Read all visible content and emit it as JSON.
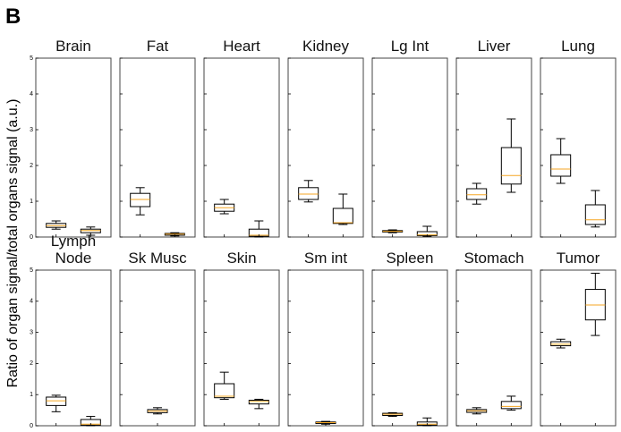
{
  "panel_label": "B",
  "ylabel": "Ratio of organ signal/total organs signal (a.u.)",
  "chart_data": [
    {
      "type": "box",
      "title": "Brain",
      "ylim": [
        0,
        5
      ],
      "yticks": [
        0,
        1,
        2,
        3,
        4,
        5
      ],
      "box_color": "#000000",
      "median_color": "#f5a623",
      "boxes": [
        {
          "whislo": 0.22,
          "q1": 0.27,
          "med": 0.32,
          "q3": 0.38,
          "whishi": 0.45
        },
        {
          "whislo": 0.05,
          "q1": 0.12,
          "med": 0.18,
          "q3": 0.22,
          "whishi": 0.28
        }
      ]
    },
    {
      "type": "box",
      "title": "Fat",
      "ylim": [
        0,
        5
      ],
      "yticks": [
        0,
        1,
        2,
        3,
        4,
        5
      ],
      "box_color": "#000000",
      "median_color": "#f5a623",
      "boxes": [
        {
          "whislo": 0.62,
          "q1": 0.85,
          "med": 1.05,
          "q3": 1.22,
          "whishi": 1.38
        },
        {
          "whislo": 0.03,
          "q1": 0.05,
          "med": 0.08,
          "q3": 0.1,
          "whishi": 0.12
        }
      ]
    },
    {
      "type": "box",
      "title": "Heart",
      "ylim": [
        0,
        5
      ],
      "yticks": [
        0,
        1,
        2,
        3,
        4,
        5
      ],
      "box_color": "#000000",
      "median_color": "#f5a623",
      "boxes": [
        {
          "whislo": 0.65,
          "q1": 0.72,
          "med": 0.82,
          "q3": 0.92,
          "whishi": 1.05
        },
        {
          "whislo": 0,
          "q1": 0.02,
          "med": 0.05,
          "q3": 0.22,
          "whishi": 0.45
        }
      ]
    },
    {
      "type": "box",
      "title": "Kidney",
      "ylim": [
        0,
        5
      ],
      "yticks": [
        0,
        1,
        2,
        3,
        4,
        5
      ],
      "box_color": "#000000",
      "median_color": "#f5a623",
      "boxes": [
        {
          "whislo": 0.98,
          "q1": 1.05,
          "med": 1.2,
          "q3": 1.38,
          "whishi": 1.58
        },
        {
          "whislo": 0.35,
          "q1": 0.38,
          "med": 0.4,
          "q3": 0.8,
          "whishi": 1.2
        }
      ]
    },
    {
      "type": "box",
      "title": "Lg Int",
      "ylim": [
        0,
        5
      ],
      "yticks": [
        0,
        1,
        2,
        3,
        4,
        5
      ],
      "box_color": "#000000",
      "median_color": "#f5a623",
      "boxes": [
        {
          "whislo": 0.12,
          "q1": 0.14,
          "med": 0.16,
          "q3": 0.18,
          "whishi": 0.2
        },
        {
          "whislo": 0.02,
          "q1": 0.04,
          "med": 0.06,
          "q3": 0.15,
          "whishi": 0.3
        }
      ]
    },
    {
      "type": "box",
      "title": "Liver",
      "ylim": [
        0,
        5
      ],
      "yticks": [
        0,
        1,
        2,
        3,
        4,
        5
      ],
      "box_color": "#000000",
      "median_color": "#f5a623",
      "boxes": [
        {
          "whislo": 0.92,
          "q1": 1.05,
          "med": 1.18,
          "q3": 1.35,
          "whishi": 1.5
        },
        {
          "whislo": 1.25,
          "q1": 1.48,
          "med": 1.72,
          "q3": 2.5,
          "whishi": 3.3
        }
      ]
    },
    {
      "type": "box",
      "title": "Lung",
      "ylim": [
        0,
        5
      ],
      "yticks": [
        0,
        1,
        2,
        3,
        4,
        5
      ],
      "box_color": "#000000",
      "median_color": "#f5a623",
      "boxes": [
        {
          "whislo": 1.5,
          "q1": 1.7,
          "med": 1.9,
          "q3": 2.3,
          "whishi": 2.75
        },
        {
          "whislo": 0.28,
          "q1": 0.35,
          "med": 0.48,
          "q3": 0.9,
          "whishi": 1.3
        }
      ]
    },
    {
      "type": "box",
      "title": "Lymph Node",
      "ylim": [
        0,
        5
      ],
      "yticks": [
        0,
        1,
        2,
        3,
        4,
        5
      ],
      "box_color": "#000000",
      "median_color": "#f5a623",
      "boxes": [
        {
          "whislo": 0.45,
          "q1": 0.65,
          "med": 0.8,
          "q3": 0.92,
          "whishi": 0.98
        },
        {
          "whislo": 0,
          "q1": 0.02,
          "med": 0.05,
          "q3": 0.2,
          "whishi": 0.3
        }
      ]
    },
    {
      "type": "box",
      "title": "Sk Musc",
      "ylim": [
        0,
        5
      ],
      "yticks": [
        0,
        1,
        2,
        3,
        4,
        5
      ],
      "box_color": "#000000",
      "median_color": "#f5a623",
      "boxes": [
        {
          "whislo": 0.38,
          "q1": 0.42,
          "med": 0.47,
          "q3": 0.52,
          "whishi": 0.58
        }
      ]
    },
    {
      "type": "box",
      "title": "Skin",
      "ylim": [
        0,
        5
      ],
      "yticks": [
        0,
        1,
        2,
        3,
        4,
        5
      ],
      "box_color": "#000000",
      "median_color": "#f5a623",
      "boxes": [
        {
          "whislo": 0.85,
          "q1": 0.9,
          "med": 0.95,
          "q3": 1.35,
          "whishi": 1.72
        },
        {
          "whislo": 0.55,
          "q1": 0.7,
          "med": 0.78,
          "q3": 0.82,
          "whishi": 0.85
        }
      ]
    },
    {
      "type": "box",
      "title": "Sm int",
      "ylim": [
        0,
        5
      ],
      "yticks": [
        0,
        1,
        2,
        3,
        4,
        5
      ],
      "box_color": "#000000",
      "median_color": "#f5a623",
      "boxes": [
        {
          "whislo": 0.05,
          "q1": 0.07,
          "med": 0.1,
          "q3": 0.12,
          "whishi": 0.14
        }
      ]
    },
    {
      "type": "box",
      "title": "Spleen",
      "ylim": [
        0,
        5
      ],
      "yticks": [
        0,
        1,
        2,
        3,
        4,
        5
      ],
      "box_color": "#000000",
      "median_color": "#f5a623",
      "boxes": [
        {
          "whislo": 0.3,
          "q1": 0.33,
          "med": 0.37,
          "q3": 0.4,
          "whishi": 0.42
        },
        {
          "whislo": 0,
          "q1": 0.02,
          "med": 0.05,
          "q3": 0.12,
          "whishi": 0.25
        }
      ]
    },
    {
      "type": "box",
      "title": "Stomach",
      "ylim": [
        0,
        5
      ],
      "yticks": [
        0,
        1,
        2,
        3,
        4,
        5
      ],
      "box_color": "#000000",
      "median_color": "#f5a623",
      "boxes": [
        {
          "whislo": 0.38,
          "q1": 0.43,
          "med": 0.48,
          "q3": 0.52,
          "whishi": 0.58
        },
        {
          "whislo": 0.5,
          "q1": 0.55,
          "med": 0.62,
          "q3": 0.78,
          "whishi": 0.95
        }
      ]
    },
    {
      "type": "box",
      "title": "Tumor",
      "ylim": [
        0,
        5
      ],
      "yticks": [
        0,
        1,
        2,
        3,
        4,
        5
      ],
      "box_color": "#000000",
      "median_color": "#f5a623",
      "boxes": [
        {
          "whislo": 2.5,
          "q1": 2.57,
          "med": 2.62,
          "q3": 2.7,
          "whishi": 2.78
        },
        {
          "whislo": 2.9,
          "q1": 3.4,
          "med": 3.88,
          "q3": 4.38,
          "whishi": 4.9
        }
      ]
    }
  ]
}
